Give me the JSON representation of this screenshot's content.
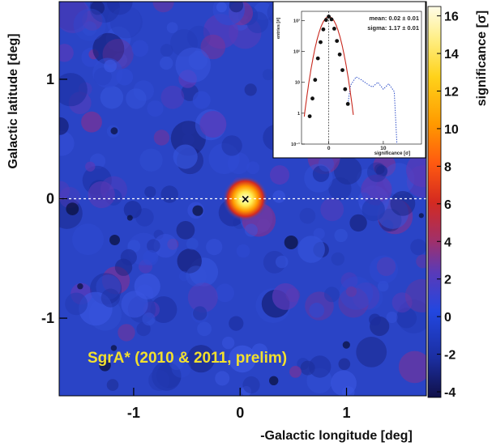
{
  "chart_data": [
    {
      "type": "heatmap",
      "title": "",
      "xlabel": "-Galactic longitude [deg]",
      "ylabel": "Galactic latitude [deg]",
      "xlim": [
        -1.7,
        1.75
      ],
      "ylim": [
        -1.65,
        1.65
      ],
      "x_ticks": [
        -1,
        0,
        1
      ],
      "x_tick_labels": [
        "-1",
        "0",
        "1"
      ],
      "y_ticks": [
        1,
        0,
        -1
      ],
      "y_tick_labels": [
        "1",
        "0",
        "-1"
      ],
      "colorbar": {
        "label": "significance [σ]",
        "range": [
          -4.3,
          16.5
        ],
        "ticks": [
          16,
          14,
          12,
          10,
          8,
          6,
          4,
          2,
          0,
          -2,
          -4
        ],
        "tick_labels": [
          "16",
          "14",
          "12",
          "10",
          "8",
          "6",
          "4",
          "2",
          "0",
          "-2",
          "-4"
        ]
      },
      "source": {
        "x": 0.05,
        "y": 0.0,
        "peak_significance": 16,
        "marker": "×"
      },
      "reference_line": {
        "y": 0,
        "style": "dashed"
      },
      "annotation": "SgrA* (2010 & 2011, prelim)",
      "grid": false
    },
    {
      "type": "line",
      "title": "",
      "xlabel": "significance [σ]",
      "ylabel": "entries [#]",
      "xlim": [
        -5,
        17
      ],
      "ylim": [
        0.1,
        2000
      ],
      "yscale": "log",
      "x_ticks": [
        0,
        10
      ],
      "x_tick_labels": [
        "0",
        "10"
      ],
      "y_ticks": [
        0.1,
        1,
        10,
        100,
        1000
      ],
      "y_tick_labels": [
        "10⁻¹",
        "1",
        "10",
        "10²",
        "10³"
      ],
      "stats": {
        "mean": "mean: 0.02 ± 0.01",
        "sigma": "sigma: 1.17 ± 0.01"
      },
      "series": [
        {
          "style": "points",
          "x": [
            -3.5,
            -3.0,
            -2.5,
            -2.0,
            -1.5,
            -1.0,
            -0.5,
            0.0,
            0.5,
            1.0,
            1.5,
            2.0,
            2.5,
            3.0,
            3.5
          ],
          "y": [
            0.8,
            3,
            12,
            60,
            200,
            520,
            1050,
            1350,
            1100,
            550,
            220,
            80,
            25,
            6,
            2
          ]
        },
        {
          "style": "fit",
          "mean": 0.02,
          "sigma": 1.17,
          "amplitude": 1350
        },
        {
          "style": "dotted",
          "x": [
            3.5,
            4.0,
            5.0,
            6.0,
            7.0,
            8.0,
            9.0,
            10.0,
            11.0,
            12.0,
            12.5
          ],
          "y": [
            2,
            8,
            15,
            12,
            9,
            7,
            10,
            6,
            9,
            5,
            0.1
          ]
        }
      ],
      "vline_x": 0
    }
  ]
}
